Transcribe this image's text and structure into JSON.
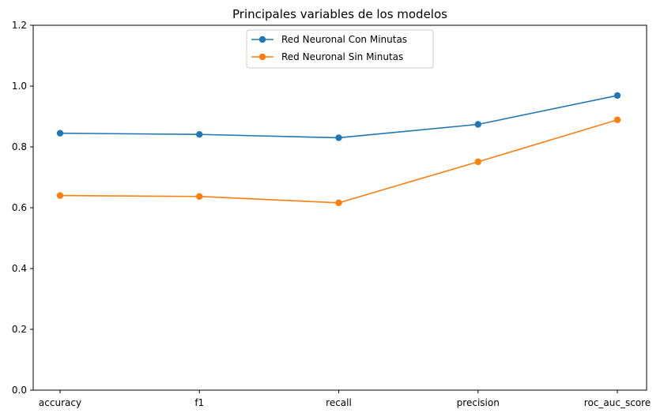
{
  "chart_data": {
    "type": "line",
    "title": "Principales variables de los modelos",
    "xlabel": "",
    "ylabel": "",
    "categories": [
      "accuracy",
      "f1",
      "recall",
      "precision",
      "roc_auc_score"
    ],
    "ylim": [
      0,
      1.2
    ],
    "yticks": [
      "0.0",
      "0.2",
      "0.4",
      "0.6",
      "0.8",
      "1.0",
      "1.2"
    ],
    "grid": false,
    "legend_position": "top-center",
    "series": [
      {
        "name": "Red Neuronal Con Minutas",
        "color": "#1f77b4",
        "marker": "circle",
        "values": [
          0.845,
          0.841,
          0.83,
          0.874,
          0.969
        ]
      },
      {
        "name": " Red Neuronal Sin Minutas",
        "color": "#ff7f0e",
        "marker": "circle",
        "values": [
          0.64,
          0.637,
          0.616,
          0.751,
          0.889
        ]
      }
    ]
  }
}
